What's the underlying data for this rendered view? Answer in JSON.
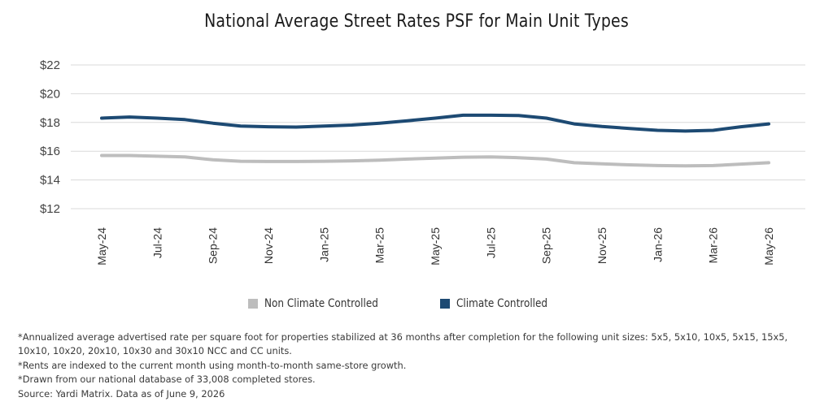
{
  "chart_data": {
    "type": "line",
    "title": "National Average Street Rates PSF for Main Unit Types",
    "xlabel": "",
    "ylabel": "",
    "ylim": [
      12,
      22
    ],
    "yticks": [
      12,
      14,
      16,
      18,
      20,
      22
    ],
    "ytick_labels": [
      "$12",
      "$14",
      "$16",
      "$18",
      "$20",
      "$22"
    ],
    "grid": true,
    "legend_position": "bottom",
    "x": [
      "May-24",
      "Jun-24",
      "Jul-24",
      "Aug-24",
      "Sep-24",
      "Oct-24",
      "Nov-24",
      "Dec-24",
      "Jan-25",
      "Feb-25",
      "Mar-25",
      "Apr-25",
      "May-25",
      "Jun-25",
      "Jul-25",
      "Aug-25",
      "Sep-25",
      "Oct-25",
      "Nov-25",
      "Dec-25",
      "Jan-26",
      "Feb-26",
      "Mar-26",
      "Apr-26",
      "May-26"
    ],
    "xtick_labels": [
      "May-24",
      "Jul-24",
      "Sep-24",
      "Nov-24",
      "Jan-25",
      "Mar-25",
      "May-25",
      "Jul-25",
      "Sep-25",
      "Nov-25",
      "Jan-26",
      "Mar-26",
      "May-26"
    ],
    "series": [
      {
        "name": "Non Climate Controlled",
        "color": "#bdbdbd",
        "values": [
          15.7,
          15.7,
          15.65,
          15.6,
          15.4,
          15.3,
          15.28,
          15.28,
          15.3,
          15.33,
          15.38,
          15.45,
          15.52,
          15.58,
          15.6,
          15.55,
          15.45,
          15.2,
          15.12,
          15.05,
          15.0,
          14.98,
          15.0,
          15.1,
          15.2
        ]
      },
      {
        "name": "Climate Controlled",
        "color": "#1d4a73",
        "values": [
          18.3,
          18.38,
          18.3,
          18.2,
          17.95,
          17.75,
          17.7,
          17.68,
          17.75,
          17.82,
          17.95,
          18.12,
          18.3,
          18.5,
          18.5,
          18.48,
          18.3,
          17.9,
          17.72,
          17.58,
          17.45,
          17.4,
          17.45,
          17.7,
          17.9
        ]
      }
    ]
  },
  "footnotes": [
    "*Annualized average advertised rate per square foot for properties stabilized at 36 months after completion for the following unit sizes: 5x5, 5x10, 10x5, 5x15, 15x5, 10x10, 10x20, 20x10, 10x30 and 30x10 NCC and CC units.",
    "*Rents are indexed to the current month using month-to-month same-store growth.",
    "*Drawn from our national database of 33,008 completed stores.",
    "Source: Yardi Matrix. Data as of June 9, 2026"
  ]
}
